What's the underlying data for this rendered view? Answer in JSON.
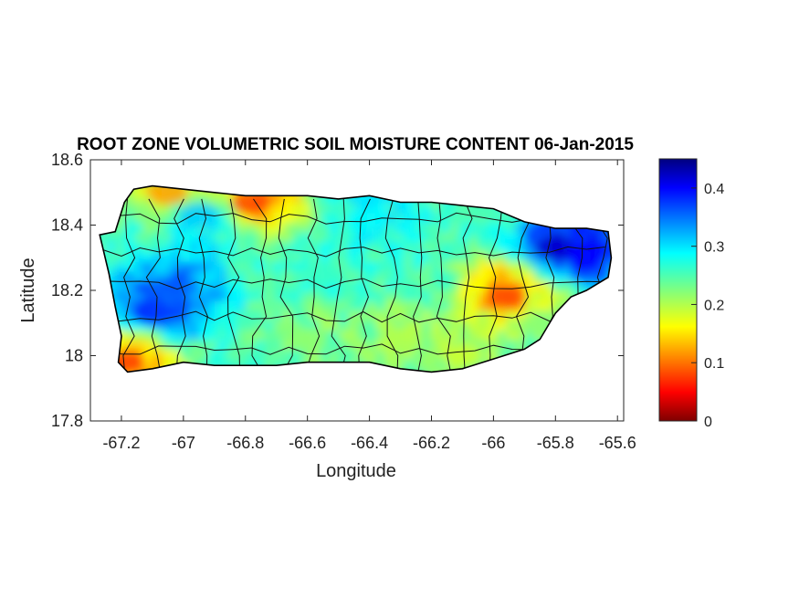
{
  "figure": {
    "title": "ROOT ZONE VOLUMETRIC SOIL MOISTURE CONTENT 06-Jan-2015",
    "xlabel": "Longitude",
    "ylabel": "Latitude"
  },
  "chart_data": {
    "type": "heatmap",
    "title": "ROOT ZONE VOLUMETRIC SOIL MOISTURE CONTENT 06-Jan-2015",
    "xlabel": "Longitude",
    "ylabel": "Latitude",
    "xlim": [
      -67.3,
      -65.58
    ],
    "ylim": [
      17.8,
      18.6
    ],
    "x_ticks": [
      "-67.2",
      "-67",
      "-66.8",
      "-66.6",
      "-66.4",
      "-66.2",
      "-66",
      "-65.8",
      "-65.6"
    ],
    "x_tick_values": [
      -67.2,
      -67.0,
      -66.8,
      -66.6,
      -66.4,
      -66.2,
      -66.0,
      -65.8,
      -65.6
    ],
    "y_ticks": [
      "17.8",
      "18",
      "18.2",
      "18.4",
      "18.6"
    ],
    "y_tick_values": [
      17.8,
      18.0,
      18.2,
      18.4,
      18.6
    ],
    "colorbar": {
      "colormap": "jet-reversed",
      "range": [
        0,
        0.45
      ],
      "ticks": [
        "0",
        "0.1",
        "0.2",
        "0.3",
        "0.4"
      ],
      "tick_values": [
        0,
        0.1,
        0.2,
        0.3,
        0.4
      ]
    },
    "grid": false,
    "island_outline_lonlat": [
      [
        -67.27,
        18.37
      ],
      [
        -67.22,
        18.38
      ],
      [
        -67.19,
        18.47
      ],
      [
        -67.16,
        18.51
      ],
      [
        -67.1,
        18.52
      ],
      [
        -67.0,
        18.51
      ],
      [
        -66.9,
        18.5
      ],
      [
        -66.8,
        18.49
      ],
      [
        -66.7,
        18.49
      ],
      [
        -66.6,
        18.49
      ],
      [
        -66.5,
        18.48
      ],
      [
        -66.4,
        18.49
      ],
      [
        -66.3,
        18.47
      ],
      [
        -66.2,
        18.47
      ],
      [
        -66.1,
        18.46
      ],
      [
        -66.0,
        18.45
      ],
      [
        -65.9,
        18.41
      ],
      [
        -65.8,
        18.39
      ],
      [
        -65.7,
        18.39
      ],
      [
        -65.63,
        18.38
      ],
      [
        -65.62,
        18.3
      ],
      [
        -65.63,
        18.24
      ],
      [
        -65.7,
        18.2
      ],
      [
        -65.75,
        18.18
      ],
      [
        -65.8,
        18.13
      ],
      [
        -65.85,
        18.05
      ],
      [
        -65.9,
        18.02
      ],
      [
        -66.0,
        17.99
      ],
      [
        -66.1,
        17.96
      ],
      [
        -66.2,
        17.95
      ],
      [
        -66.3,
        17.96
      ],
      [
        -66.4,
        17.98
      ],
      [
        -66.5,
        17.98
      ],
      [
        -66.6,
        17.98
      ],
      [
        -66.7,
        17.97
      ],
      [
        -66.8,
        17.97
      ],
      [
        -66.9,
        17.97
      ],
      [
        -67.0,
        17.98
      ],
      [
        -67.1,
        17.96
      ],
      [
        -67.18,
        17.95
      ],
      [
        -67.21,
        17.98
      ],
      [
        -67.2,
        18.06
      ],
      [
        -67.22,
        18.15
      ],
      [
        -67.24,
        18.25
      ],
      [
        -67.27,
        18.37
      ]
    ],
    "moisture_features": [
      {
        "region": "northeast",
        "lon": -65.8,
        "lat": 18.33,
        "value": 0.42
      },
      {
        "region": "northeast",
        "lon": -65.7,
        "lat": 18.31,
        "value": 0.4
      },
      {
        "region": "east-central",
        "lon": -65.96,
        "lat": 18.18,
        "value": 0.08
      },
      {
        "region": "north coast",
        "lon": -66.78,
        "lat": 18.47,
        "value": 0.08
      },
      {
        "region": "north coast",
        "lon": -67.05,
        "lat": 18.5,
        "value": 0.12
      },
      {
        "region": "southwest",
        "lon": -67.19,
        "lat": 17.98,
        "value": 0.08
      },
      {
        "region": "west-central",
        "lon": -67.05,
        "lat": 18.2,
        "value": 0.36
      },
      {
        "region": "west",
        "lon": -67.1,
        "lat": 18.13,
        "value": 0.38
      },
      {
        "region": "north-west",
        "lon": -66.95,
        "lat": 18.43,
        "value": 0.31
      },
      {
        "region": "central",
        "lon": -66.55,
        "lat": 18.25,
        "value": 0.26
      },
      {
        "region": "south-central",
        "lon": -66.3,
        "lat": 18.05,
        "value": 0.2
      },
      {
        "region": "south",
        "lon": -66.6,
        "lat": 18.05,
        "value": 0.22
      },
      {
        "region": "east",
        "lon": -65.85,
        "lat": 18.1,
        "value": 0.22
      },
      {
        "region": "south-east",
        "lon": -66.1,
        "lat": 18.0,
        "value": 0.19
      },
      {
        "region": "north-central",
        "lon": -66.4,
        "lat": 18.42,
        "value": 0.29
      },
      {
        "region": "north-east coast",
        "lon": -66.05,
        "lat": 18.44,
        "value": 0.25
      }
    ],
    "base_value": 0.26
  }
}
